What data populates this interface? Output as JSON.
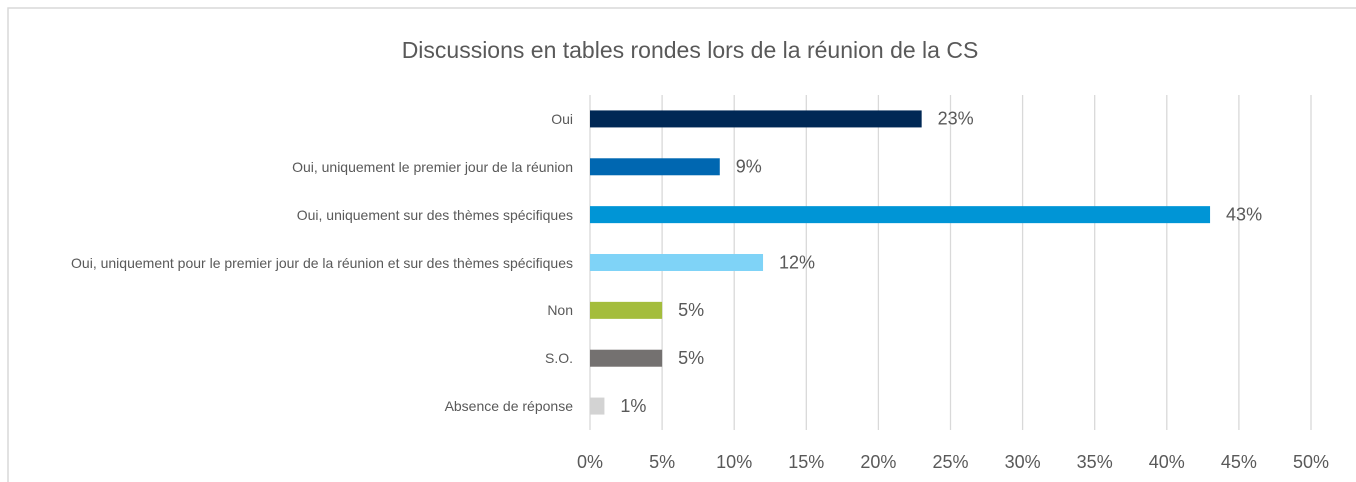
{
  "chart_data": {
    "type": "bar",
    "orientation": "horizontal",
    "title": "Discussions en tables rondes lors de la réunion de la CS",
    "categories": [
      "Oui",
      "Oui, uniquement le premier jour de la réunion",
      "Oui, uniquement sur des thèmes spécifiques",
      "Oui, uniquement pour le premier jour de la réunion et sur des thèmes spécifiques",
      "Non",
      "S.O.",
      "Absence de réponse"
    ],
    "values": [
      23,
      9,
      43,
      12,
      5,
      5,
      1
    ],
    "value_labels": [
      "23%",
      "9%",
      "43%",
      "12%",
      "5%",
      "5%",
      "1%"
    ],
    "colors": [
      "#002855",
      "#0067b1",
      "#0095d6",
      "#7fd3f7",
      "#a4bd3c",
      "#747170",
      "#d3d3d3"
    ],
    "xlim": [
      0,
      50
    ],
    "xticks": [
      {
        "value": 0,
        "label": "0%"
      },
      {
        "value": 5,
        "label": "5%"
      },
      {
        "value": 10,
        "label": "10%"
      },
      {
        "value": 15,
        "label": "15%"
      },
      {
        "value": 20,
        "label": "20%"
      },
      {
        "value": 25,
        "label": "25%"
      },
      {
        "value": 30,
        "label": "30%"
      },
      {
        "value": 35,
        "label": "35%"
      },
      {
        "value": 40,
        "label": "40%"
      },
      {
        "value": 45,
        "label": "45%"
      },
      {
        "value": 50,
        "label": "50%"
      }
    ],
    "grid": true
  }
}
